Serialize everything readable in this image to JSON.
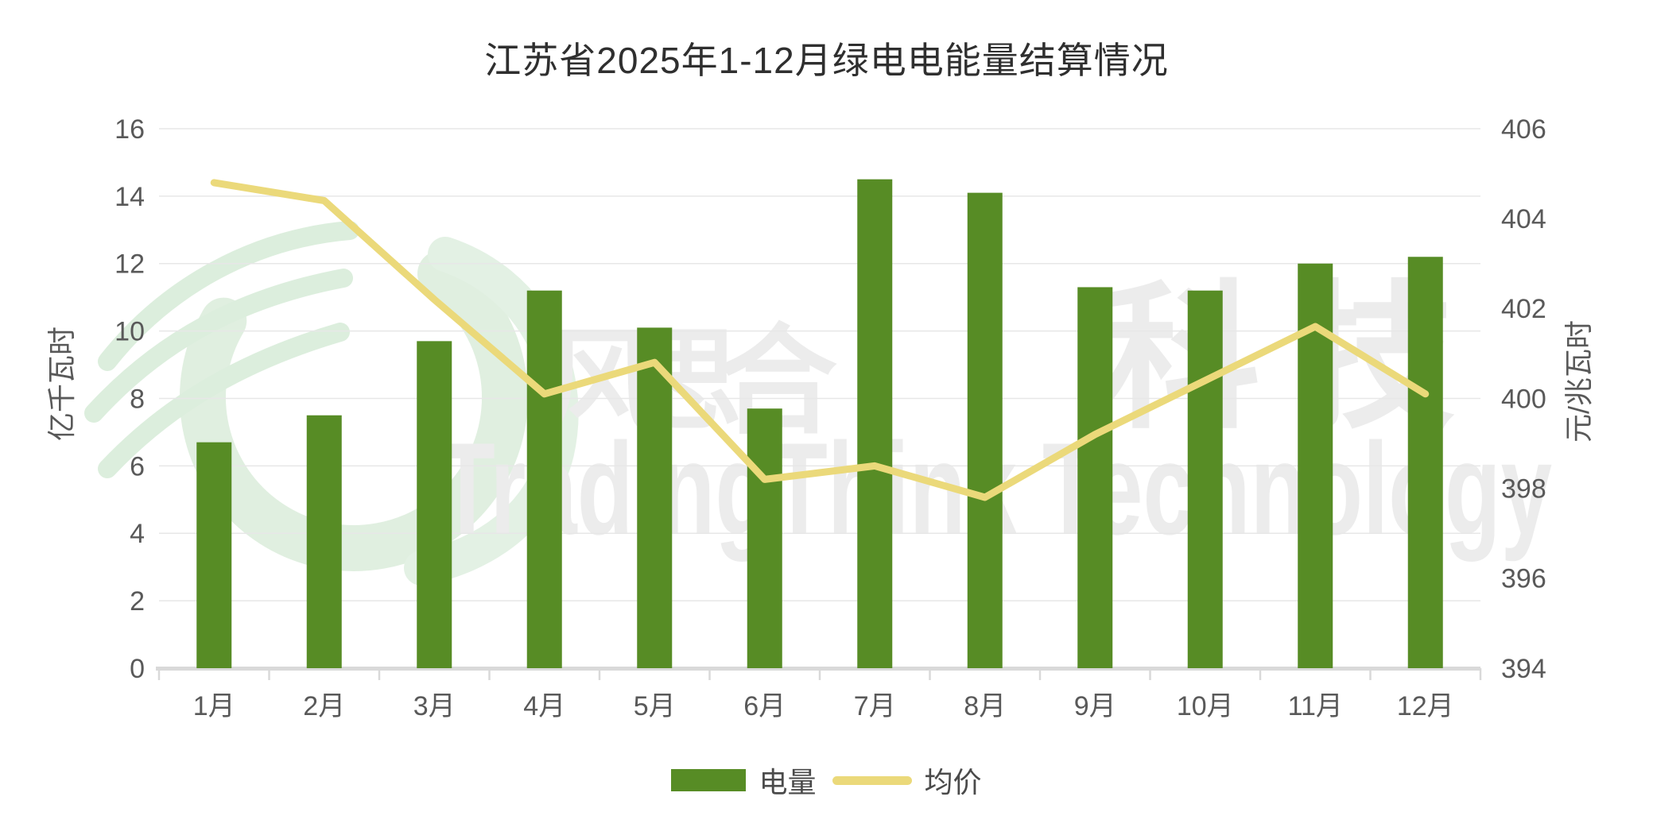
{
  "chart_data": {
    "type": "bar",
    "title": "江苏省2025年1-12月绿电电能量结算情况",
    "categories": [
      "1月",
      "2月",
      "3月",
      "4月",
      "5月",
      "6月",
      "7月",
      "8月",
      "9月",
      "10月",
      "11月",
      "12月"
    ],
    "series": [
      {
        "name": "电量",
        "type": "bar",
        "axis": "left",
        "color": "#578c25",
        "values": [
          6.7,
          7.5,
          9.7,
          11.2,
          10.1,
          7.7,
          14.5,
          14.1,
          11.3,
          11.2,
          12.0,
          12.2
        ]
      },
      {
        "name": "均价",
        "type": "line",
        "axis": "right",
        "color": "#ebd97a",
        "values": [
          404.8,
          404.4,
          402.2,
          400.1,
          400.8,
          398.2,
          398.5,
          397.8,
          399.2,
          400.4,
          401.6,
          400.1
        ]
      }
    ],
    "y_left": {
      "name": "亿千瓦时",
      "min": 0,
      "max": 16,
      "step": 2
    },
    "y_right": {
      "name": "元/兆瓦时",
      "min": 394,
      "max": 406,
      "step": 2
    },
    "grid": true,
    "legend_position": "bottom"
  },
  "colors": {
    "bar": "#578c25",
    "line": "#ebd97a",
    "gridline": "#e7e7e7",
    "axis_line": "#d9d9d9",
    "tick_text": "#595959",
    "title_text": "#2f2f2f",
    "watermark_gray": "#ececec",
    "watermark_mint": "#ddeedd"
  },
  "watermark": {
    "logo": "phoenix-swirl-logo",
    "zh_chars": [
      "风",
      "思",
      "合",
      "科",
      "技"
    ],
    "en": "TradingThink Technology"
  },
  "legend": {
    "items": [
      {
        "label": "电量",
        "swatch": "bar"
      },
      {
        "label": "均价",
        "swatch": "line"
      }
    ]
  }
}
